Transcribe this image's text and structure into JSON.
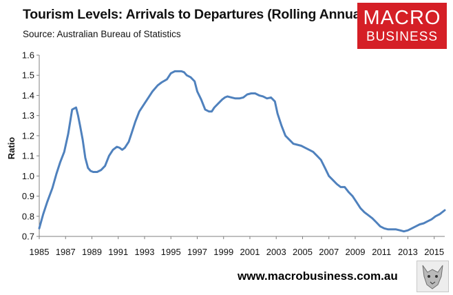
{
  "header": {
    "title": "Tourism Levels: Arrivals to Departures (Rolling Annual)",
    "subtitle": "Source: Australian Bureau of Statistics"
  },
  "logo": {
    "line1": "MACRO",
    "line2": "BUSINESS"
  },
  "footer": {
    "website": "www.macrobusiness.com.au"
  },
  "colors": {
    "series": "#4f81bd",
    "logo_bg": "#d51f26"
  },
  "chart_data": {
    "type": "line",
    "title": "Tourism Levels: Arrivals to Departures (Rolling Annual)",
    "xlabel": "",
    "ylabel": "Ratio",
    "xlim": [
      1985,
      2015.8
    ],
    "ylim": [
      0.7,
      1.6
    ],
    "x_tick_labels": [
      "1985",
      "1987",
      "1989",
      "1991",
      "1993",
      "1995",
      "1997",
      "1999",
      "2001",
      "2003",
      "2005",
      "2007",
      "2009",
      "2011",
      "2013",
      "2015"
    ],
    "y_tick_labels": [
      "0.7",
      "0.8",
      "0.9",
      "1.0",
      "1.1",
      "1.2",
      "1.3",
      "1.4",
      "1.5",
      "1.6"
    ],
    "grid": false,
    "legend": "none",
    "series": [
      {
        "x": [
          1985.0,
          1985.3,
          1985.6,
          1986.0,
          1986.3,
          1986.6,
          1986.9,
          1987.2,
          1987.5,
          1987.8,
          1987.95,
          1988.1,
          1988.3,
          1988.5,
          1988.7,
          1988.9,
          1989.1,
          1989.4,
          1989.7,
          1990.0,
          1990.3,
          1990.6,
          1990.9,
          1991.1,
          1991.3,
          1991.5,
          1991.8,
          1992.0,
          1992.3,
          1992.6,
          1993.0,
          1993.3,
          1993.6,
          1994.0,
          1994.3,
          1994.7,
          1995.0,
          1995.3,
          1995.5,
          1995.8,
          1996.0,
          1996.2,
          1996.5,
          1996.8,
          1997.0,
          1997.3,
          1997.6,
          1997.9,
          1998.1,
          1998.3,
          1998.6,
          1998.9,
          1999.1,
          1999.3,
          1999.6,
          1999.9,
          2000.2,
          2000.5,
          2000.8,
          2001.1,
          2001.4,
          2001.7,
          2002.0,
          2002.3,
          2002.6,
          2002.9,
          2003.1,
          2003.4,
          2003.7,
          2004.0,
          2004.3,
          2004.6,
          2004.9,
          2005.2,
          2005.5,
          2005.8,
          2006.1,
          2006.4,
          2006.7,
          2007.0,
          2007.3,
          2007.6,
          2007.9,
          2008.2,
          2008.5,
          2008.8,
          2009.1,
          2009.4,
          2009.7,
          2010.0,
          2010.3,
          2010.6,
          2010.9,
          2011.2,
          2011.5,
          2011.8,
          2012.1,
          2012.4,
          2012.7,
          2013.0,
          2013.3,
          2013.6,
          2013.9,
          2014.2,
          2014.5,
          2014.8,
          2015.1,
          2015.4,
          2015.8
        ],
        "values": [
          0.74,
          0.81,
          0.87,
          0.94,
          1.01,
          1.07,
          1.12,
          1.21,
          1.33,
          1.34,
          1.3,
          1.25,
          1.18,
          1.09,
          1.04,
          1.025,
          1.02,
          1.02,
          1.03,
          1.05,
          1.1,
          1.13,
          1.145,
          1.14,
          1.13,
          1.14,
          1.17,
          1.21,
          1.27,
          1.32,
          1.36,
          1.39,
          1.42,
          1.45,
          1.465,
          1.48,
          1.51,
          1.52,
          1.52,
          1.52,
          1.515,
          1.5,
          1.49,
          1.47,
          1.42,
          1.38,
          1.33,
          1.32,
          1.32,
          1.34,
          1.36,
          1.38,
          1.39,
          1.395,
          1.39,
          1.385,
          1.385,
          1.39,
          1.405,
          1.41,
          1.41,
          1.4,
          1.395,
          1.385,
          1.39,
          1.37,
          1.31,
          1.25,
          1.2,
          1.18,
          1.16,
          1.155,
          1.15,
          1.14,
          1.13,
          1.12,
          1.1,
          1.08,
          1.04,
          1.0,
          0.98,
          0.96,
          0.945,
          0.945,
          0.92,
          0.9,
          0.87,
          0.84,
          0.82,
          0.805,
          0.79,
          0.77,
          0.75,
          0.74,
          0.735,
          0.735,
          0.735,
          0.73,
          0.725,
          0.73,
          0.74,
          0.75,
          0.76,
          0.765,
          0.775,
          0.785,
          0.8,
          0.81,
          0.83
        ]
      }
    ]
  }
}
